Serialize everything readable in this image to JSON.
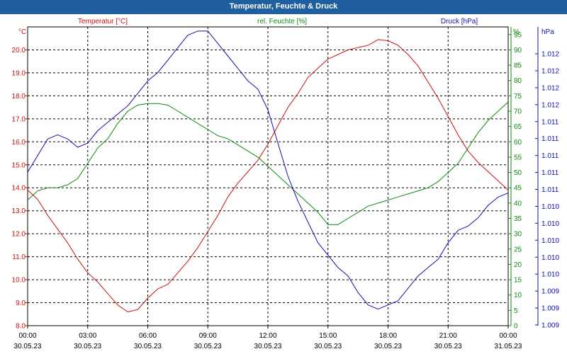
{
  "window": {
    "title": "Temperatur, Feuchte & Druck"
  },
  "colors": {
    "temperature": "#cc1111",
    "humidity": "#118811",
    "pressure": "#1111aa",
    "titlebar": "#1f5fa0"
  },
  "chart_data": {
    "type": "line",
    "title": "Temperatur, Feuchte & Druck",
    "x_ticks": [
      {
        "hour": 0,
        "time": "00:00",
        "date": "30.05.23"
      },
      {
        "hour": 3,
        "time": "03:00",
        "date": "30.05.23"
      },
      {
        "hour": 6,
        "time": "06:00",
        "date": "30.05.23"
      },
      {
        "hour": 9,
        "time": "09:00",
        "date": "30.05.23"
      },
      {
        "hour": 12,
        "time": "12:00",
        "date": "30.05.23"
      },
      {
        "hour": 15,
        "time": "15:00",
        "date": "30.05.23"
      },
      {
        "hour": 18,
        "time": "18:00",
        "date": "30.05.23"
      },
      {
        "hour": 21,
        "time": "21:00",
        "date": "30.05.23"
      },
      {
        "hour": 24,
        "time": "00:00",
        "date": "31.05.23"
      }
    ],
    "xlim": [
      0,
      24
    ],
    "axes": {
      "temperature": {
        "legend": "Temperatur [°C]",
        "unit": "°C",
        "ylim": [
          8.0,
          21.0
        ],
        "ticks": [
          "8.0",
          "9.0",
          "10.0",
          "11.0",
          "12.0",
          "13.0",
          "14.0",
          "15.0",
          "16.0",
          "17.0",
          "18.0",
          "19.0",
          "20.0"
        ]
      },
      "humidity": {
        "legend": "rel. Feuchte [%]",
        "unit": "%",
        "ylim": [
          0,
          97.5
        ],
        "ticks": [
          "0",
          "5",
          "10",
          "15",
          "20",
          "25",
          "30",
          "35",
          "40",
          "45",
          "50",
          "55",
          "60",
          "65",
          "70",
          "75",
          "80",
          "85",
          "90",
          "95"
        ]
      },
      "pressure": {
        "legend": "Druck [hPa]",
        "unit": "hPa",
        "ylim": [
          1009.0,
          1012.6
        ],
        "ticks": [
          "1.009",
          "1.009",
          "1.009",
          "1.010",
          "1.010",
          "1.010",
          "1.010",
          "1.010",
          "1.011",
          "1.011",
          "1.011",
          "1.011",
          "1.011",
          "1.012",
          "1.012",
          "1.012",
          "1.012"
        ]
      }
    },
    "series": [
      {
        "name": "Temperatur [°C]",
        "axis": "temperature",
        "x": [
          0,
          0.5,
          1,
          1.5,
          2,
          2.5,
          3,
          3.5,
          4,
          4.5,
          5,
          5.5,
          6,
          6.5,
          7,
          7.5,
          8,
          8.5,
          9,
          9.5,
          10,
          10.5,
          11,
          11.5,
          12,
          12.5,
          13,
          13.5,
          14,
          14.5,
          15,
          15.5,
          16,
          16.5,
          17,
          17.5,
          18,
          18.5,
          19,
          19.5,
          20,
          20.5,
          21,
          21.5,
          22,
          22.5,
          23,
          23.5,
          24
        ],
        "values": [
          13.9,
          13.5,
          12.8,
          12.2,
          11.6,
          10.9,
          10.3,
          9.9,
          9.4,
          8.9,
          8.6,
          8.7,
          9.2,
          9.6,
          9.8,
          10.3,
          10.8,
          11.4,
          12.1,
          12.8,
          13.6,
          14.2,
          14.7,
          15.2,
          15.9,
          16.7,
          17.5,
          18.1,
          18.8,
          19.2,
          19.6,
          19.8,
          20.0,
          20.1,
          20.2,
          20.45,
          20.4,
          20.2,
          19.8,
          19.3,
          18.6,
          17.9,
          17.1,
          16.3,
          15.6,
          15.1,
          14.7,
          14.3,
          13.9
        ]
      },
      {
        "name": "rel. Feuchte [%]",
        "axis": "humidity",
        "x": [
          0,
          0.5,
          1,
          1.5,
          2,
          2.5,
          3,
          3.5,
          4,
          4.5,
          5,
          5.5,
          6,
          6.5,
          7,
          7.5,
          8,
          8.5,
          9,
          9.5,
          10,
          10.5,
          11,
          11.5,
          12,
          12.5,
          13,
          13.5,
          14,
          14.5,
          15,
          15.5,
          16,
          16.5,
          17,
          17.5,
          18,
          18.5,
          19,
          19.5,
          20,
          20.5,
          21,
          21.5,
          22,
          22.5,
          23,
          23.5,
          24
        ],
        "values": [
          41,
          44,
          45,
          45,
          46,
          48,
          53,
          58,
          61,
          66,
          70,
          72,
          72.5,
          72.5,
          72,
          70,
          68,
          66,
          64,
          62,
          61,
          59,
          57,
          55,
          52,
          49,
          46,
          43,
          40,
          37,
          33,
          33,
          35,
          37,
          39,
          40,
          41,
          42,
          43,
          44,
          45,
          47,
          50,
          53,
          58,
          63,
          67,
          70,
          73
        ]
      },
      {
        "name": "Druck [hPa]",
        "axis": "pressure",
        "x": [
          0,
          0.5,
          1,
          1.5,
          2,
          2.5,
          3,
          3.5,
          4,
          4.5,
          5,
          5.5,
          6,
          6.5,
          7,
          7.5,
          8,
          8.5,
          9,
          9.5,
          10,
          10.5,
          11,
          11.5,
          12,
          12.5,
          13,
          13.5,
          14,
          14.5,
          15,
          15.5,
          16,
          16.5,
          17,
          17.5,
          18,
          18.5,
          19,
          19.5,
          20,
          20.5,
          21,
          21.5,
          22,
          22.5,
          23,
          23.5,
          24
        ],
        "values": [
          1010.85,
          1011.05,
          1011.25,
          1011.3,
          1011.25,
          1011.15,
          1011.2,
          1011.35,
          1011.45,
          1011.55,
          1011.65,
          1011.8,
          1011.95,
          1012.05,
          1012.2,
          1012.35,
          1012.5,
          1012.55,
          1012.55,
          1012.4,
          1012.25,
          1012.1,
          1011.95,
          1011.85,
          1011.6,
          1011.2,
          1010.8,
          1010.5,
          1010.25,
          1010.0,
          1009.85,
          1009.7,
          1009.6,
          1009.4,
          1009.25,
          1009.2,
          1009.25,
          1009.3,
          1009.45,
          1009.6,
          1009.7,
          1009.8,
          1010.0,
          1010.15,
          1010.2,
          1010.3,
          1010.45,
          1010.55,
          1010.6
        ]
      }
    ]
  }
}
